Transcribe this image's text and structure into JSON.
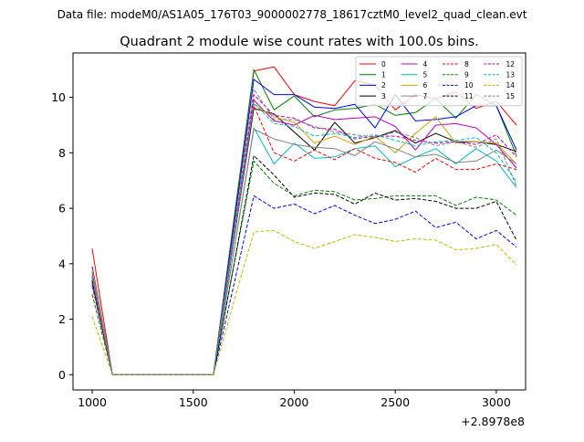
{
  "suptitle": "Data file: modeM0/AS1A05_176T03_9000002778_18617cztM0_level2_quad_clean.evt",
  "chart_data": {
    "type": "line",
    "title": "Quadrant 2 module wise count rates with 100.0s bins.",
    "xlabel": "",
    "ylabel": "",
    "x_offset_label": "+2.8978e8",
    "xlim": [
      905,
      3145
    ],
    "ylim": [
      -0.55,
      11.6
    ],
    "xticks": [
      1000,
      1500,
      2000,
      2500,
      3000
    ],
    "yticks": [
      0,
      2,
      4,
      6,
      8,
      10
    ],
    "x": [
      1000,
      1100,
      1200,
      1300,
      1400,
      1500,
      1600,
      1700,
      1800,
      1900,
      2000,
      2100,
      2200,
      2300,
      2400,
      2500,
      2600,
      2700,
      2800,
      2900,
      3000,
      3100
    ],
    "legend_location": "top-right",
    "legend_columns": 4,
    "series": [
      {
        "name": "0",
        "color": "#ff0000",
        "style": "solid",
        "values": [
          4.55,
          0,
          0,
          0,
          0,
          0,
          0,
          5.5,
          10.95,
          11.1,
          10.1,
          9.85,
          9.7,
          10.6,
          10.45,
          9.55,
          10.1,
          9.95,
          10.2,
          9.6,
          9.85,
          9.0
        ]
      },
      {
        "name": "1",
        "color": "#008000",
        "style": "solid",
        "values": [
          3.5,
          0,
          0,
          0,
          0,
          0,
          0,
          5.5,
          11.0,
          9.55,
          10.05,
          9.3,
          9.55,
          9.6,
          9.75,
          9.35,
          9.45,
          9.95,
          9.25,
          10.1,
          9.7,
          7.9
        ]
      },
      {
        "name": "2",
        "color": "#0000ff",
        "style": "solid",
        "values": [
          3.9,
          0,
          0,
          0,
          0,
          0,
          0,
          5.3,
          10.65,
          10.1,
          10.1,
          9.65,
          9.6,
          9.75,
          8.9,
          10.1,
          9.15,
          9.2,
          9.3,
          9.7,
          9.7,
          8.1
        ]
      },
      {
        "name": "3",
        "color": "#000000",
        "style": "solid",
        "values": [
          3.6,
          0,
          0,
          0,
          0,
          0,
          0,
          4.8,
          9.6,
          9.4,
          8.75,
          8.1,
          9.1,
          8.35,
          8.55,
          8.8,
          8.35,
          8.7,
          8.4,
          8.4,
          8.3,
          8.05
        ]
      },
      {
        "name": "4",
        "color": "#bf00bf",
        "style": "solid",
        "values": [
          3.7,
          0,
          0,
          0,
          0,
          0,
          0,
          4.9,
          9.9,
          9.15,
          9.0,
          9.35,
          9.2,
          9.25,
          9.3,
          8.95,
          8.1,
          9.0,
          9.05,
          8.9,
          8.3,
          7.45
        ]
      },
      {
        "name": "5",
        "color": "#00bfbf",
        "style": "solid",
        "values": [
          3.4,
          0,
          0,
          0,
          0,
          0,
          0,
          4.4,
          8.9,
          7.6,
          8.35,
          7.8,
          7.85,
          8.15,
          8.25,
          7.5,
          7.85,
          8.15,
          7.6,
          8.15,
          7.7,
          6.75
        ]
      },
      {
        "name": "6",
        "color": "#d9a000",
        "style": "solid",
        "values": [
          3.8,
          0,
          0,
          0,
          0,
          0,
          0,
          4.9,
          9.75,
          9.3,
          9.1,
          8.35,
          8.6,
          8.3,
          8.6,
          8.0,
          8.7,
          9.3,
          8.35,
          8.4,
          8.35,
          7.6
        ]
      },
      {
        "name": "7",
        "color": "#808080",
        "style": "solid",
        "values": [
          3.45,
          0,
          0,
          0,
          0,
          0,
          0,
          4.4,
          8.85,
          8.5,
          8.3,
          8.2,
          8.15,
          7.9,
          8.4,
          8.15,
          7.85,
          7.95,
          7.65,
          7.7,
          8.1,
          7.6
        ]
      },
      {
        "name": "8",
        "color": "#ff0000",
        "style": "dashed",
        "values": [
          3.2,
          0,
          0,
          0,
          0,
          0,
          0,
          4.8,
          9.7,
          8.0,
          7.7,
          8.1,
          7.75,
          8.15,
          7.8,
          7.65,
          7.3,
          7.8,
          7.4,
          7.4,
          7.6,
          7.4
        ]
      },
      {
        "name": "9",
        "color": "#008000",
        "style": "dashed",
        "values": [
          2.9,
          0,
          0,
          0,
          0,
          0,
          0,
          3.9,
          7.7,
          6.9,
          6.45,
          6.65,
          6.6,
          6.3,
          6.35,
          6.45,
          6.45,
          6.45,
          6.1,
          6.4,
          6.3,
          5.75
        ]
      },
      {
        "name": "10",
        "color": "#0000ff",
        "style": "dashed",
        "values": [
          3.3,
          0,
          0,
          0,
          0,
          0,
          0,
          3.2,
          6.45,
          6.0,
          6.15,
          5.8,
          6.1,
          5.75,
          5.45,
          5.6,
          5.9,
          5.3,
          5.5,
          4.9,
          5.2,
          4.6
        ]
      },
      {
        "name": "11",
        "color": "#000000",
        "style": "dashed",
        "values": [
          3.4,
          0,
          0,
          0,
          0,
          0,
          0,
          3.9,
          7.9,
          7.2,
          6.4,
          6.55,
          6.5,
          6.15,
          6.55,
          6.3,
          6.35,
          6.25,
          6.0,
          6.0,
          6.25,
          4.85
        ]
      },
      {
        "name": "12",
        "color": "#bf00bf",
        "style": "dashed",
        "values": [
          3.55,
          0,
          0,
          0,
          0,
          0,
          0,
          5.0,
          10.1,
          9.35,
          9.25,
          8.9,
          8.85,
          8.5,
          8.6,
          8.6,
          8.45,
          8.35,
          8.4,
          8.3,
          8.65,
          7.85
        ]
      },
      {
        "name": "13",
        "color": "#00bfbf",
        "style": "dashed",
        "values": [
          3.5,
          0,
          0,
          0,
          0,
          0,
          0,
          4.85,
          9.8,
          9.05,
          8.95,
          8.6,
          8.7,
          8.55,
          8.65,
          8.45,
          8.25,
          8.4,
          8.45,
          8.55,
          8.0,
          6.95
        ]
      },
      {
        "name": "14",
        "color": "#bfbf00",
        "style": "dashed",
        "values": [
          2.1,
          0,
          0,
          0,
          0,
          0,
          0,
          2.6,
          5.15,
          5.2,
          4.8,
          4.55,
          4.8,
          5.05,
          4.95,
          4.8,
          4.9,
          4.85,
          4.5,
          4.55,
          4.7,
          3.95
        ]
      },
      {
        "name": "15",
        "color": "#808080",
        "style": "dashed",
        "values": [
          3.6,
          0,
          0,
          0,
          0,
          0,
          0,
          5.1,
          10.3,
          9.2,
          9.2,
          8.95,
          8.75,
          8.65,
          8.55,
          8.75,
          8.55,
          8.25,
          8.4,
          8.2,
          8.5,
          6.8
        ]
      }
    ]
  }
}
